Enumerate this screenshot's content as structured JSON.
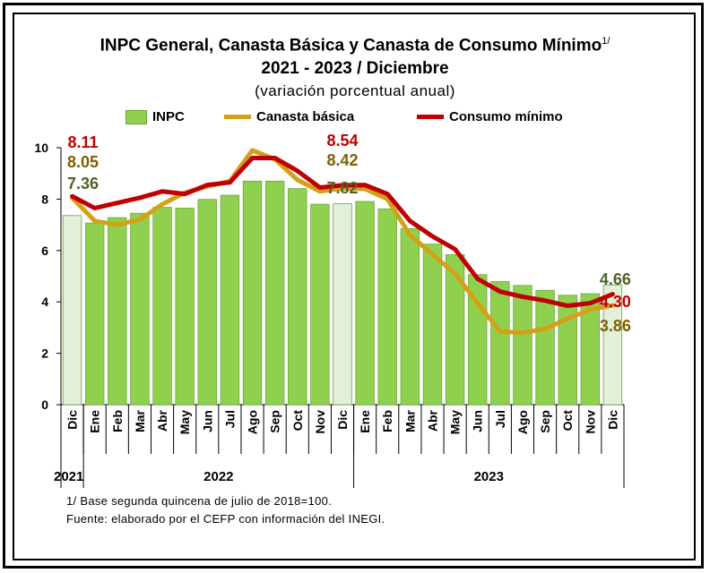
{
  "title": {
    "line1": "INPC General, Canasta Básica  y Canasta de Consumo Mínimo",
    "footnote_mark": "1/",
    "line2": "2021 - 2023 / Diciembre",
    "subtitle": "(variación porcentual anual)"
  },
  "colors": {
    "inpc": "#8fd14f",
    "inpc_highlight": "#e2f0d9",
    "canasta": "#d4a017",
    "consumo": "#c00000",
    "label_inpc": "#4f6228",
    "label_canasta": "#7f6000",
    "label_consumo": "#c00000"
  },
  "chart_data": {
    "type": "bar",
    "categories": [
      "Dic",
      "Ene",
      "Feb",
      "Mar",
      "Abr",
      "May",
      "Jun",
      "Jul",
      "Ago",
      "Sep",
      "Oct",
      "Nov",
      "Dic",
      "Ene",
      "Feb",
      "Mar",
      "Abr",
      "May",
      "Jun",
      "Jul",
      "Ago",
      "Sep",
      "Oct",
      "Nov",
      "Dic"
    ],
    "year_groups": [
      {
        "label": "2021",
        "start": 0,
        "end": 0
      },
      {
        "label": "2022",
        "start": 1,
        "end": 12
      },
      {
        "label": "2023",
        "start": 13,
        "end": 24
      }
    ],
    "ylim": [
      0,
      10
    ],
    "yticks": [
      0,
      2,
      4,
      6,
      8,
      10
    ],
    "series": [
      {
        "name": "INPC",
        "kind": "bar",
        "values": [
          7.36,
          7.07,
          7.28,
          7.45,
          7.68,
          7.65,
          7.99,
          8.15,
          8.7,
          8.7,
          8.41,
          7.8,
          7.82,
          7.91,
          7.62,
          6.85,
          6.25,
          5.84,
          5.06,
          4.79,
          4.64,
          4.45,
          4.26,
          4.32,
          4.66
        ]
      },
      {
        "name": "Canasta básica",
        "kind": "line",
        "values": [
          8.05,
          7.15,
          7.0,
          7.2,
          7.8,
          8.25,
          8.5,
          8.7,
          9.9,
          9.55,
          8.75,
          8.3,
          8.42,
          8.4,
          8.0,
          6.6,
          5.85,
          5.1,
          3.95,
          2.85,
          2.8,
          2.95,
          3.35,
          3.7,
          3.86
        ]
      },
      {
        "name": "Consumo mínimo",
        "kind": "line",
        "values": [
          8.11,
          7.65,
          7.85,
          8.05,
          8.3,
          8.2,
          8.55,
          8.65,
          9.6,
          9.6,
          9.1,
          8.45,
          8.54,
          8.55,
          8.2,
          7.15,
          6.55,
          6.05,
          4.9,
          4.4,
          4.2,
          4.05,
          3.85,
          3.95,
          4.3
        ]
      }
    ],
    "data_labels": {
      "first": {
        "consumo": "8.11",
        "canasta": "8.05",
        "inpc": "7.36"
      },
      "mid": {
        "consumo": "8.54",
        "canasta": "8.42",
        "inpc": "7.82"
      },
      "last": {
        "inpc": "4.66",
        "consumo": "4.30",
        "canasta": "3.86"
      }
    },
    "legend": [
      "INPC",
      "Canasta básica",
      "Consumo mínimo"
    ],
    "legend_position": "top"
  },
  "notes": {
    "note1": "1/ Base segunda quincena de julio de 2018=100.",
    "note2": "Fuente: elaborado por el CEFP con información  del INEGI."
  }
}
